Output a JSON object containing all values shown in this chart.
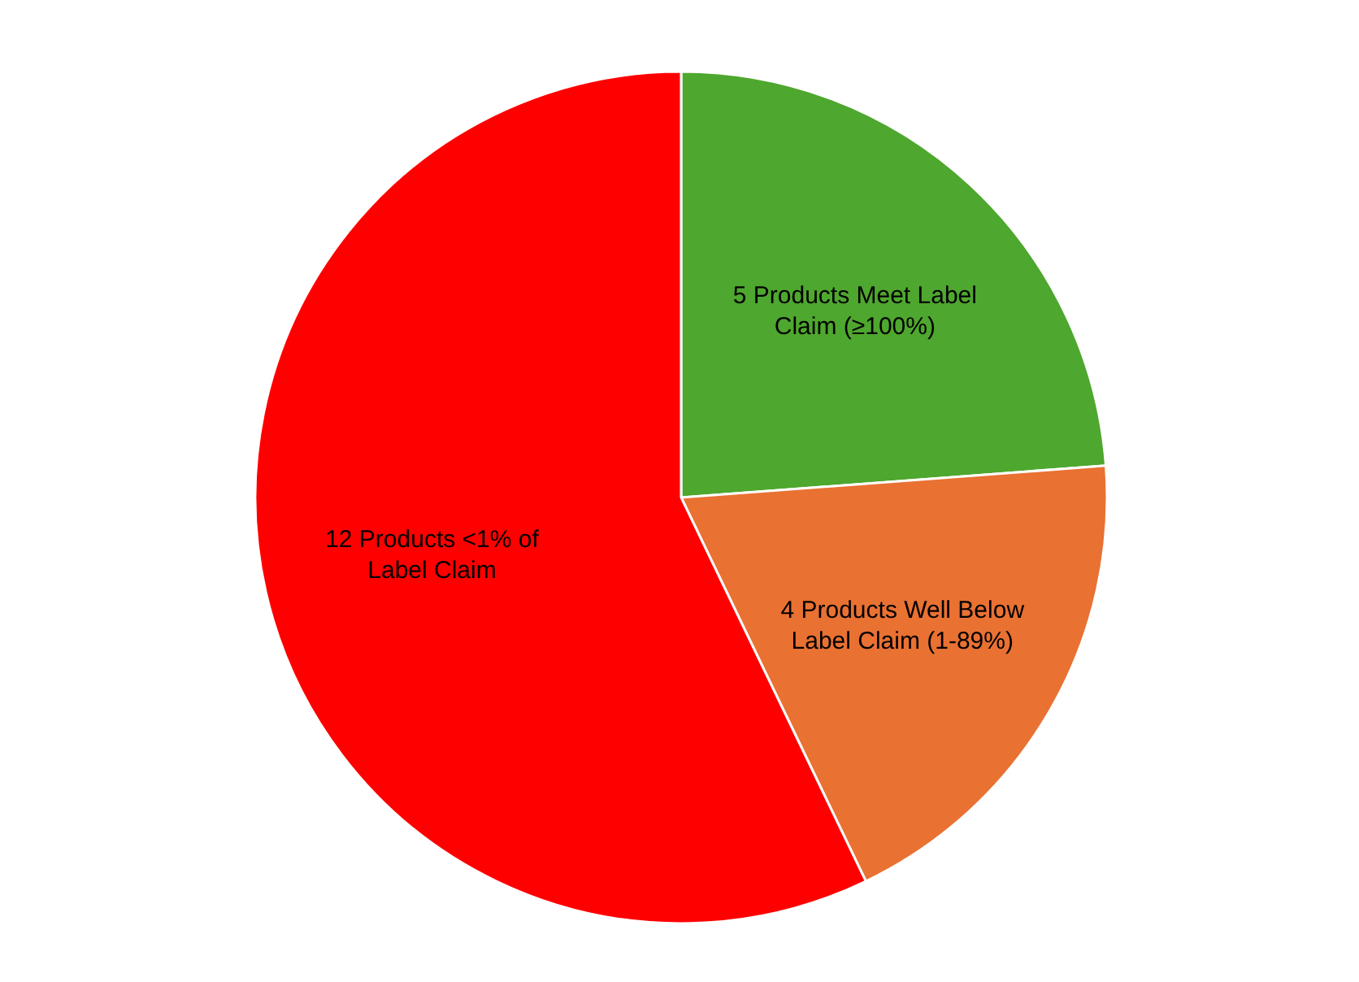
{
  "chart_data": {
    "type": "pie",
    "categories": [
      "5 Products Meet Label Claim (≥100%)",
      "4 Products Well Below Label Claim (1-89%)",
      "12 Products <1% of Label Claim"
    ],
    "values": [
      5,
      4,
      12
    ],
    "colors": [
      "#4ea72e",
      "#e97132",
      "#ff0000"
    ]
  }
}
